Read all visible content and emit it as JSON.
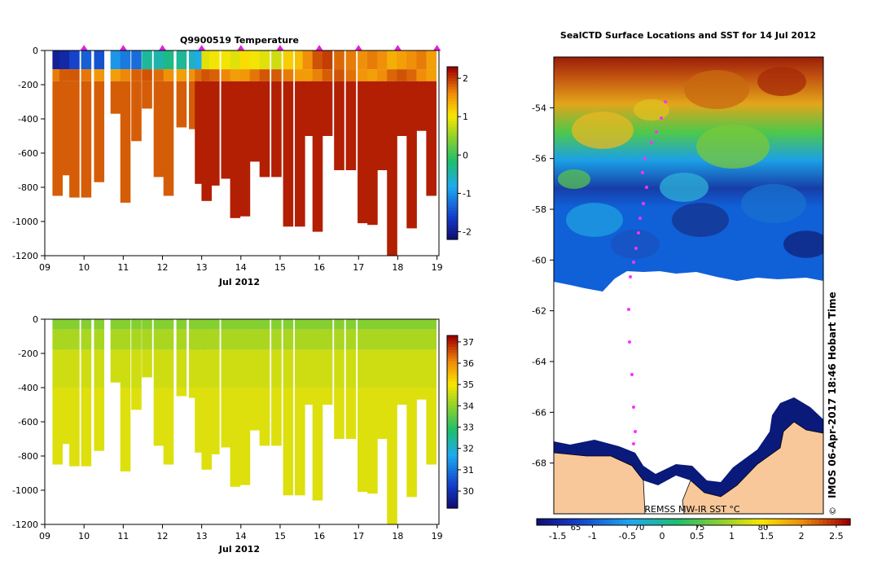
{
  "chart_data": [
    {
      "type": "heatmap",
      "title": "Q9900519  Temperature",
      "xlabel": "Jul 2012",
      "x_ticks": [
        "09",
        "10",
        "11",
        "12",
        "13",
        "14",
        "15",
        "16",
        "17",
        "18",
        "19"
      ],
      "x_range": [
        9,
        19.05
      ],
      "y_ticks": [
        "0",
        "-200",
        "-400",
        "-600",
        "-800",
        "-1000",
        "-1200"
      ],
      "ylim": [
        -1200,
        0
      ],
      "colorbar_ticks": [
        "2",
        "1",
        "0",
        "-1",
        "-2"
      ],
      "colorbar_range": [
        -2.2,
        2.3
      ],
      "profiles": [
        {
          "t": 9.32,
          "depth": 850
        },
        {
          "t": 9.5,
          "depth": 730
        },
        {
          "t": 9.75,
          "depth": 860
        },
        {
          "t": 10.05,
          "depth": 860
        },
        {
          "t": 10.38,
          "depth": 770
        },
        {
          "t": 10.8,
          "depth": 370
        },
        {
          "t": 11.05,
          "depth": 890
        },
        {
          "t": 11.33,
          "depth": 530
        },
        {
          "t": 11.6,
          "depth": 340
        },
        {
          "t": 11.9,
          "depth": 740
        },
        {
          "t": 12.15,
          "depth": 850
        },
        {
          "t": 12.48,
          "depth": 450
        },
        {
          "t": 12.8,
          "depth": 460
        },
        {
          "t": 12.95,
          "depth": 780
        },
        {
          "t": 13.12,
          "depth": 880
        },
        {
          "t": 13.32,
          "depth": 790
        },
        {
          "t": 13.62,
          "depth": 750
        },
        {
          "t": 13.85,
          "depth": 980
        },
        {
          "t": 14.1,
          "depth": 970
        },
        {
          "t": 14.35,
          "depth": 650
        },
        {
          "t": 14.6,
          "depth": 740
        },
        {
          "t": 14.9,
          "depth": 740
        },
        {
          "t": 15.2,
          "depth": 1030
        },
        {
          "t": 15.5,
          "depth": 1030
        },
        {
          "t": 15.7,
          "depth": 500
        },
        {
          "t": 15.95,
          "depth": 1060
        },
        {
          "t": 16.2,
          "depth": 500
        },
        {
          "t": 16.5,
          "depth": 700
        },
        {
          "t": 16.8,
          "depth": 700
        },
        {
          "t": 17.1,
          "depth": 1010
        },
        {
          "t": 17.35,
          "depth": 1020
        },
        {
          "t": 17.6,
          "depth": 700
        },
        {
          "t": 17.85,
          "depth": 1200
        },
        {
          "t": 18.1,
          "depth": 500
        },
        {
          "t": 18.35,
          "depth": 1040
        },
        {
          "t": 18.6,
          "depth": 470
        },
        {
          "t": 18.85,
          "depth": 850
        }
      ],
      "surface_values": [
        -2.0,
        -1.9,
        -1.6,
        -1.4,
        -1.5,
        -1.0,
        -1.2,
        -1.3,
        -0.4,
        -0.5,
        -0.3,
        -0.4,
        -0.6,
        -0.8,
        0.9,
        1.0,
        1.0,
        0.9,
        1.1,
        1.0,
        0.9,
        0.8,
        1.2,
        1.3,
        1.6,
        1.9,
        2.0,
        1.8,
        1.7,
        1.6,
        1.7,
        1.6,
        1.4,
        1.5,
        1.6,
        1.7,
        1.5
      ],
      "markers_at": [
        10,
        11,
        12,
        13,
        14,
        15,
        16,
        17,
        18,
        19
      ]
    },
    {
      "type": "heatmap",
      "title": "",
      "xlabel": "Jul 2012",
      "x_ticks": [
        "09",
        "10",
        "11",
        "12",
        "13",
        "14",
        "15",
        "16",
        "17",
        "18",
        "19"
      ],
      "x_range": [
        9,
        19.05
      ],
      "y_ticks": [
        "0",
        "-200",
        "-400",
        "-600",
        "-800",
        "-1000",
        "-1200"
      ],
      "ylim": [
        -1200,
        0
      ],
      "colorbar_ticks": [
        "37",
        "36",
        "35",
        "34",
        "33",
        "32",
        "31",
        "30"
      ],
      "colorbar_range": [
        29.2,
        37.3
      ]
    },
    {
      "type": "heatmap",
      "title": "SealCTD Surface Locations and SST for 14 Jul 2012",
      "y_ticks": [
        "-54",
        "-56",
        "-58",
        "-60",
        "-62",
        "-64",
        "-66",
        "-68"
      ],
      "ylim": [
        -70,
        -52
      ],
      "x_ticks": [
        "65",
        "70",
        "75",
        "80"
      ],
      "colorbar_ticks": [
        "-1.5",
        "-1",
        "-0.5",
        "0",
        "0.5",
        "1",
        "1.5",
        "2",
        "2.5"
      ],
      "colorbar_range": [
        -1.8,
        2.7
      ],
      "colorbar_label": "REMSS MW-IR SST °C",
      "side_label": "IMOS 06-Apr-2017 18:46 Hobart Time",
      "copyright": "©"
    }
  ]
}
